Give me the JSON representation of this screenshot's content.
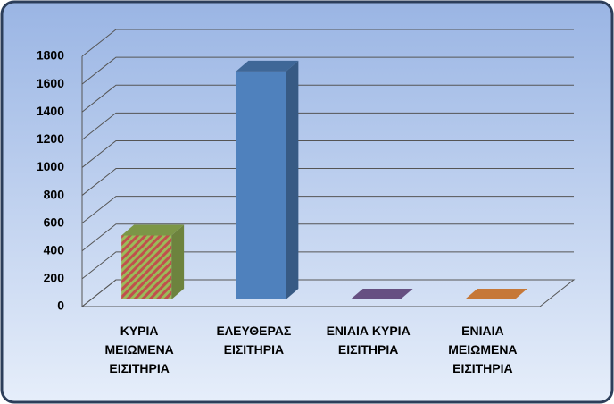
{
  "chart_data": {
    "type": "bar3d",
    "categories": [
      "ΚΥΡΙΑ\nΜΕΙΩΜΕΝΑ\nΕΙΣΙΤΗΡΙΑ",
      "ΕΛΕΥΘΕΡΑΣ\nΕΙΣΙΤΗΡΙΑ",
      "ΕΝΙΑΙΑ ΚΥΡΙΑ\nΕΙΣΙΤΗΡΙΑ",
      "ΕΝΙΑΙΑ\nΜΕΙΩΜΕΝΑ\nΕΙΣΙΤΗΡΙΑ"
    ],
    "values": [
      460,
      1640,
      0,
      0
    ],
    "colors": [
      "#9bbb59",
      "#4f81bd",
      "#8064a2",
      "#f79646"
    ],
    "ylim": [
      0,
      1800
    ],
    "yticks": [
      0,
      200,
      400,
      600,
      800,
      1000,
      1200,
      1400,
      1600,
      1800
    ],
    "grid": true
  }
}
